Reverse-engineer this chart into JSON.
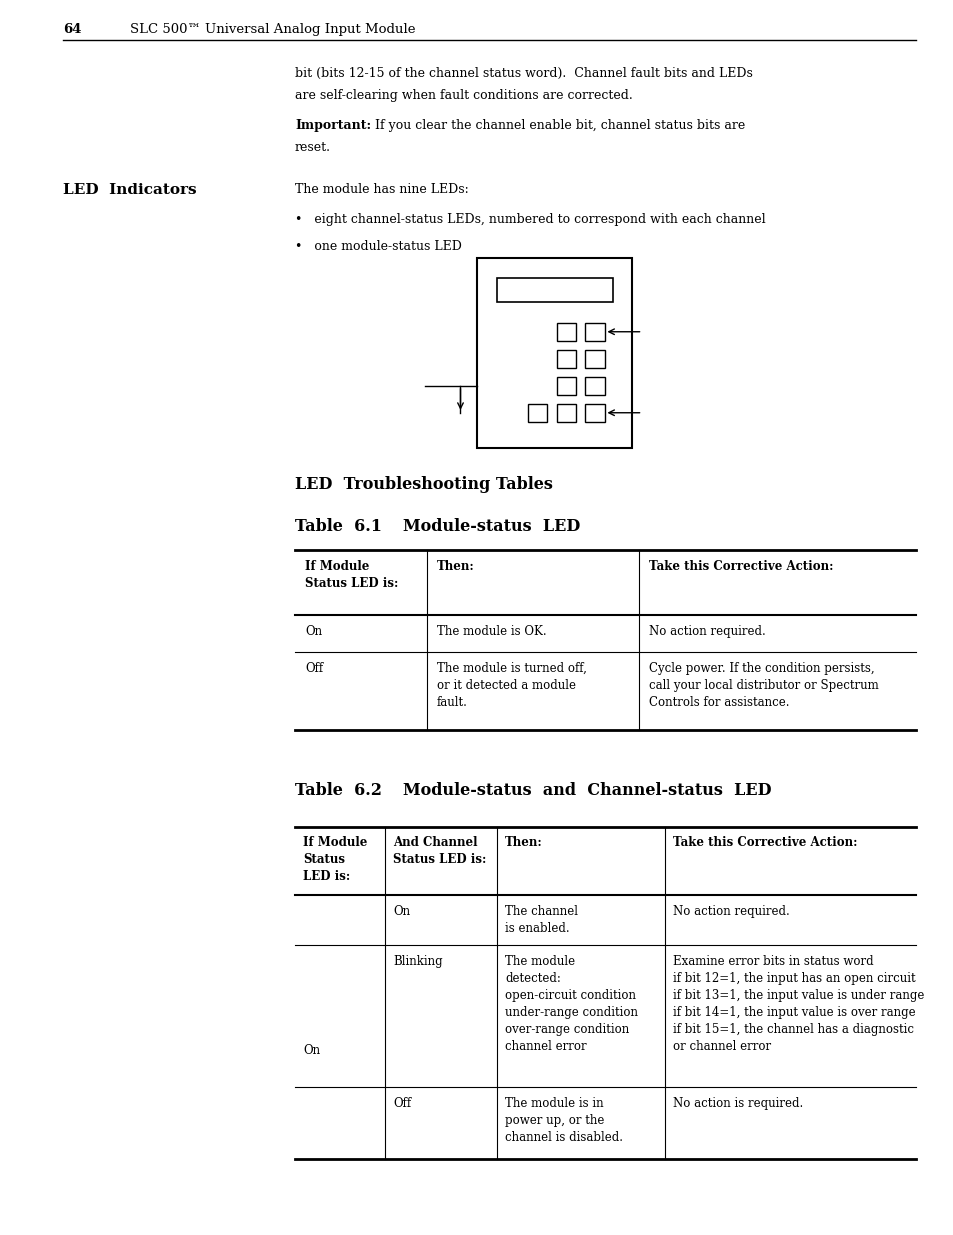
{
  "page_num": "64",
  "header_title": "SLC 500™ Universal Analog Input Module",
  "bg_color": "#ffffff",
  "intro_text1": "bit (bits 12-15 of the channel status word).  Channel fault bits and LEDs",
  "intro_text2": "are self-clearing when fault conditions are corrected.",
  "important_bold": "Important:",
  "important_rest": "  If you clear the channel enable bit, channel status bits are",
  "important_rest2": "reset.",
  "section_title": "LED  Indicators",
  "section_body1": "The module has nine LEDs:",
  "bullet1": "•   eight channel-status LEDs, numbered to correspond with each channel",
  "bullet2": "•   one module-status LED",
  "led_section_title": "LED  Troubleshooting Tables",
  "table1_title_a": "Table  6.1",
  "table1_title_b": "Module-status  LED",
  "table1_col1_header": "If Module\nStatus LED is:",
  "table1_col2_header": "Then:",
  "table1_col3_header": "Take this Corrective Action:",
  "table1_row1": [
    "On",
    "The module is OK.",
    "No action required."
  ],
  "table1_row2_c1": "Off",
  "table1_row2_c2": "The module is turned off,\nor it detected a module\nfault.",
  "table1_row2_c3": "Cycle power. If the condition persists,\ncall your local distributor or Spectrum\nControls for assistance.",
  "table2_title_a": "Table  6.2",
  "table2_title_b": "Module-status  and  Channel-status  LED",
  "table2_col1_header": "If Module\nStatus\nLED is:",
  "table2_col2_header": "And Channel\nStatus LED is:",
  "table2_col3_header": "Then:",
  "table2_col4_header": "Take this Corrective Action:",
  "table2_r1_c2": "On",
  "table2_r1_c3": "The channel\nis enabled.",
  "table2_r1_c4": "No action required.",
  "table2_r2_c1": "On",
  "table2_r2_c2": "Blinking",
  "table2_r2_c3": "The module\ndetected:\nopen-circuit condition\nunder-range condition\nover-range condition\nchannel error",
  "table2_r2_c4": "Examine error bits in status word\nif bit 12=1, the input has an open circuit\nif bit 13=1, the input value is under range\nif bit 14=1, the input value is over range\nif bit 15=1, the channel has a diagnostic\nor channel error",
  "table2_r3_c2": "Off",
  "table2_r3_c3": "The module is in\npower up, or the\nchannel is disabled.",
  "table2_r3_c4": "No action is required."
}
